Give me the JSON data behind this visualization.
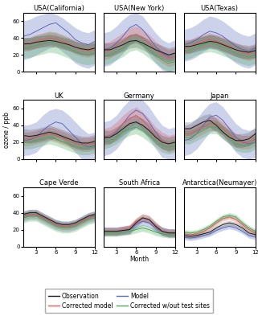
{
  "sites": [
    "USA(California)",
    "USA(New York)",
    "USA(Texas)",
    "UK",
    "Germany",
    "Japan",
    "Cape Verde",
    "South Africa",
    "Antarctica(Neumayer)"
  ],
  "months": [
    1,
    2,
    3,
    4,
    5,
    6,
    7,
    8,
    9,
    10,
    11,
    12
  ],
  "ylim": [
    0,
    70
  ],
  "yticks": [
    0,
    20,
    40,
    60
  ],
  "xticks": [
    3,
    6,
    9,
    12
  ],
  "ylabel": "ozone / ppb",
  "xlabel": "Month",
  "colors": {
    "obs": "#1a1a1a",
    "model": "#5b6abf",
    "corrected": "#e05c5c",
    "corrected_wo": "#4aaa5c"
  },
  "data": {
    "USA(California)": {
      "obs": [
        33,
        33,
        35,
        36,
        37,
        36,
        34,
        32,
        29,
        27,
        26,
        28
      ],
      "obs_lo": [
        26,
        26,
        28,
        29,
        30,
        29,
        27,
        25,
        22,
        20,
        19,
        21
      ],
      "obs_hi": [
        40,
        40,
        42,
        43,
        44,
        43,
        41,
        39,
        36,
        34,
        33,
        35
      ],
      "model": [
        42,
        44,
        48,
        52,
        56,
        58,
        52,
        46,
        38,
        34,
        32,
        36
      ],
      "model_lo": [
        14,
        16,
        20,
        24,
        28,
        30,
        24,
        18,
        10,
        6,
        4,
        8
      ],
      "model_hi": [
        60,
        62,
        66,
        68,
        70,
        68,
        64,
        58,
        52,
        48,
        46,
        50
      ],
      "corr": [
        32,
        33,
        36,
        38,
        40,
        39,
        36,
        33,
        29,
        26,
        25,
        27
      ],
      "corr_lo": [
        24,
        25,
        28,
        30,
        32,
        31,
        28,
        25,
        21,
        18,
        17,
        19
      ],
      "corr_hi": [
        40,
        41,
        44,
        46,
        48,
        47,
        44,
        41,
        37,
        34,
        33,
        35
      ],
      "corrwo": [
        28,
        29,
        31,
        33,
        35,
        34,
        31,
        28,
        24,
        21,
        20,
        22
      ],
      "corrwo_lo": [
        16,
        17,
        19,
        21,
        23,
        22,
        19,
        16,
        12,
        9,
        8,
        10
      ],
      "corrwo_hi": [
        40,
        41,
        43,
        45,
        47,
        46,
        43,
        40,
        36,
        33,
        32,
        34
      ]
    },
    "USA(New York)": {
      "obs": [
        26,
        26,
        29,
        32,
        36,
        37,
        34,
        30,
        26,
        23,
        20,
        22
      ],
      "obs_lo": [
        18,
        18,
        21,
        24,
        28,
        29,
        26,
        22,
        18,
        15,
        12,
        14
      ],
      "obs_hi": [
        34,
        34,
        37,
        40,
        44,
        45,
        42,
        38,
        34,
        31,
        28,
        30
      ],
      "model": [
        26,
        28,
        34,
        42,
        52,
        56,
        50,
        40,
        30,
        22,
        18,
        22
      ],
      "model_lo": [
        6,
        8,
        14,
        22,
        32,
        36,
        30,
        20,
        10,
        2,
        0,
        2
      ],
      "model_hi": [
        46,
        48,
        54,
        62,
        68,
        70,
        66,
        56,
        46,
        38,
        34,
        38
      ],
      "corr": [
        24,
        26,
        31,
        36,
        42,
        44,
        40,
        34,
        26,
        20,
        16,
        18
      ],
      "corr_lo": [
        14,
        16,
        21,
        26,
        32,
        34,
        30,
        24,
        16,
        10,
        6,
        8
      ],
      "corr_hi": [
        34,
        36,
        41,
        46,
        52,
        54,
        50,
        44,
        36,
        30,
        26,
        28
      ],
      "corrwo": [
        18,
        20,
        24,
        28,
        34,
        36,
        32,
        26,
        20,
        14,
        10,
        12
      ],
      "corrwo_lo": [
        8,
        10,
        14,
        18,
        24,
        26,
        22,
        16,
        10,
        4,
        0,
        2
      ],
      "corrwo_hi": [
        28,
        30,
        34,
        38,
        44,
        46,
        42,
        36,
        30,
        24,
        20,
        22
      ]
    },
    "USA(Texas)": {
      "obs": [
        30,
        30,
        32,
        34,
        36,
        35,
        32,
        29,
        26,
        24,
        23,
        25
      ],
      "obs_lo": [
        22,
        22,
        24,
        26,
        28,
        27,
        24,
        21,
        18,
        16,
        15,
        17
      ],
      "obs_hi": [
        38,
        38,
        40,
        42,
        44,
        43,
        40,
        37,
        34,
        32,
        31,
        33
      ],
      "model": [
        32,
        34,
        38,
        44,
        48,
        46,
        42,
        36,
        30,
        26,
        24,
        28
      ],
      "model_lo": [
        12,
        14,
        18,
        24,
        28,
        26,
        22,
        16,
        10,
        6,
        4,
        8
      ],
      "model_hi": [
        50,
        52,
        56,
        62,
        66,
        64,
        60,
        54,
        48,
        44,
        42,
        46
      ],
      "corr": [
        28,
        30,
        34,
        36,
        38,
        36,
        33,
        30,
        26,
        23,
        21,
        24
      ],
      "corr_lo": [
        20,
        22,
        26,
        28,
        30,
        28,
        25,
        22,
        18,
        15,
        13,
        16
      ],
      "corr_hi": [
        36,
        38,
        42,
        44,
        46,
        44,
        41,
        38,
        34,
        31,
        29,
        32
      ],
      "corrwo": [
        24,
        26,
        30,
        32,
        34,
        32,
        29,
        26,
        22,
        19,
        17,
        20
      ],
      "corrwo_lo": [
        14,
        16,
        20,
        22,
        24,
        22,
        19,
        16,
        12,
        9,
        7,
        10
      ],
      "corrwo_hi": [
        34,
        36,
        40,
        42,
        44,
        42,
        39,
        36,
        32,
        29,
        27,
        30
      ]
    },
    "UK": {
      "obs": [
        28,
        27,
        28,
        30,
        32,
        30,
        27,
        24,
        21,
        19,
        19,
        21
      ],
      "obs_lo": [
        20,
        19,
        20,
        22,
        24,
        22,
        19,
        16,
        13,
        11,
        11,
        13
      ],
      "obs_hi": [
        36,
        35,
        36,
        38,
        40,
        38,
        35,
        32,
        29,
        27,
        27,
        29
      ],
      "model": [
        22,
        23,
        26,
        34,
        40,
        44,
        42,
        34,
        26,
        18,
        14,
        16
      ],
      "model_lo": [
        4,
        5,
        8,
        16,
        22,
        26,
        24,
        16,
        8,
        0,
        0,
        0
      ],
      "model_hi": [
        40,
        41,
        44,
        52,
        58,
        60,
        58,
        52,
        44,
        36,
        30,
        32
      ],
      "corr": [
        24,
        24,
        26,
        28,
        30,
        28,
        25,
        22,
        19,
        17,
        17,
        19
      ],
      "corr_lo": [
        16,
        16,
        18,
        20,
        22,
        20,
        17,
        14,
        11,
        9,
        9,
        11
      ],
      "corr_hi": [
        32,
        32,
        34,
        36,
        38,
        36,
        33,
        30,
        27,
        25,
        25,
        27
      ],
      "corrwo": [
        20,
        20,
        22,
        24,
        26,
        24,
        21,
        18,
        15,
        13,
        13,
        15
      ],
      "corrwo_lo": [
        12,
        12,
        14,
        16,
        18,
        16,
        13,
        10,
        7,
        5,
        5,
        7
      ],
      "corrwo_hi": [
        28,
        28,
        30,
        32,
        34,
        32,
        29,
        26,
        23,
        21,
        21,
        23
      ]
    },
    "Germany": {
      "obs": [
        26,
        26,
        30,
        36,
        42,
        44,
        40,
        34,
        26,
        20,
        18,
        20
      ],
      "obs_lo": [
        18,
        18,
        22,
        28,
        34,
        36,
        32,
        26,
        18,
        12,
        10,
        12
      ],
      "obs_hi": [
        34,
        34,
        38,
        44,
        50,
        52,
        48,
        42,
        34,
        28,
        26,
        28
      ],
      "model": [
        24,
        26,
        32,
        42,
        52,
        58,
        54,
        44,
        32,
        22,
        18,
        20
      ],
      "model_lo": [
        4,
        6,
        12,
        22,
        32,
        38,
        34,
        24,
        12,
        2,
        0,
        0
      ],
      "model_hi": [
        44,
        46,
        52,
        62,
        70,
        70,
        70,
        62,
        50,
        40,
        36,
        38
      ],
      "corr": [
        26,
        28,
        34,
        42,
        48,
        52,
        46,
        38,
        28,
        22,
        18,
        20
      ],
      "corr_lo": [
        16,
        18,
        24,
        32,
        38,
        42,
        36,
        28,
        18,
        12,
        8,
        10
      ],
      "corr_hi": [
        36,
        38,
        44,
        52,
        58,
        62,
        56,
        48,
        38,
        32,
        28,
        30
      ],
      "corrwo": [
        20,
        22,
        26,
        32,
        36,
        38,
        34,
        28,
        22,
        16,
        14,
        16
      ],
      "corrwo_lo": [
        12,
        14,
        18,
        24,
        28,
        30,
        26,
        20,
        14,
        8,
        6,
        8
      ],
      "corrwo_hi": [
        28,
        30,
        34,
        40,
        44,
        46,
        42,
        36,
        30,
        24,
        22,
        24
      ]
    },
    "Japan": {
      "obs": [
        36,
        36,
        40,
        44,
        46,
        40,
        32,
        26,
        22,
        22,
        24,
        30
      ],
      "obs_lo": [
        28,
        28,
        32,
        36,
        38,
        32,
        24,
        18,
        14,
        14,
        16,
        22
      ],
      "obs_hi": [
        44,
        44,
        48,
        52,
        54,
        48,
        40,
        34,
        30,
        30,
        32,
        38
      ],
      "model": [
        22,
        24,
        30,
        40,
        50,
        52,
        46,
        36,
        26,
        20,
        18,
        20
      ],
      "model_lo": [
        4,
        6,
        12,
        22,
        32,
        34,
        28,
        18,
        8,
        2,
        0,
        2
      ],
      "model_hi": [
        40,
        42,
        48,
        58,
        66,
        68,
        62,
        52,
        42,
        36,
        34,
        36
      ],
      "corr": [
        30,
        30,
        34,
        38,
        42,
        42,
        36,
        30,
        22,
        20,
        20,
        24
      ],
      "corr_lo": [
        22,
        22,
        26,
        30,
        34,
        34,
        28,
        22,
        14,
        12,
        12,
        16
      ],
      "corr_hi": [
        38,
        38,
        42,
        46,
        50,
        50,
        44,
        38,
        30,
        28,
        28,
        32
      ],
      "corrwo": [
        26,
        26,
        30,
        34,
        38,
        38,
        32,
        26,
        18,
        16,
        16,
        20
      ],
      "corrwo_lo": [
        18,
        18,
        22,
        26,
        30,
        30,
        24,
        18,
        10,
        8,
        8,
        12
      ],
      "corrwo_hi": [
        34,
        34,
        38,
        42,
        46,
        46,
        40,
        34,
        26,
        24,
        24,
        28
      ]
    },
    "Cape Verde": {
      "obs": [
        38,
        40,
        40,
        36,
        32,
        28,
        26,
        26,
        28,
        32,
        36,
        38
      ],
      "obs_lo": [
        34,
        36,
        36,
        32,
        28,
        24,
        22,
        22,
        24,
        28,
        32,
        34
      ],
      "obs_hi": [
        42,
        44,
        44,
        40,
        36,
        32,
        30,
        30,
        32,
        36,
        40,
        42
      ],
      "model": [
        36,
        38,
        38,
        34,
        30,
        26,
        24,
        24,
        26,
        30,
        34,
        36
      ],
      "model_lo": [
        30,
        32,
        32,
        28,
        24,
        20,
        18,
        18,
        20,
        24,
        28,
        30
      ],
      "model_hi": [
        42,
        44,
        44,
        40,
        36,
        32,
        30,
        30,
        32,
        36,
        40,
        42
      ],
      "corr": [
        36,
        38,
        38,
        34,
        30,
        26,
        24,
        24,
        26,
        30,
        34,
        36
      ],
      "corr_lo": [
        32,
        34,
        34,
        30,
        26,
        22,
        20,
        20,
        22,
        26,
        30,
        32
      ],
      "corr_hi": [
        40,
        42,
        42,
        38,
        34,
        30,
        28,
        28,
        30,
        34,
        38,
        40
      ],
      "corrwo": [
        34,
        36,
        36,
        32,
        28,
        24,
        22,
        22,
        24,
        28,
        32,
        34
      ],
      "corrwo_lo": [
        28,
        30,
        30,
        26,
        22,
        18,
        16,
        16,
        18,
        22,
        26,
        28
      ],
      "corrwo_hi": [
        40,
        42,
        42,
        38,
        34,
        30,
        28,
        28,
        30,
        34,
        38,
        40
      ]
    },
    "South Africa": {
      "obs": [
        18,
        18,
        18,
        19,
        20,
        28,
        34,
        32,
        24,
        18,
        16,
        16
      ],
      "obs_lo": [
        13,
        13,
        13,
        14,
        15,
        23,
        29,
        27,
        19,
        13,
        11,
        11
      ],
      "obs_hi": [
        23,
        23,
        23,
        24,
        25,
        33,
        39,
        37,
        29,
        23,
        21,
        21
      ],
      "model": [
        18,
        18,
        18,
        19,
        20,
        26,
        30,
        28,
        22,
        18,
        16,
        16
      ],
      "model_lo": [
        13,
        13,
        13,
        14,
        15,
        21,
        25,
        23,
        17,
        13,
        11,
        11
      ],
      "model_hi": [
        23,
        23,
        23,
        24,
        25,
        31,
        35,
        33,
        27,
        23,
        21,
        21
      ],
      "corr": [
        18,
        18,
        18,
        20,
        22,
        30,
        34,
        32,
        25,
        18,
        16,
        16
      ],
      "corr_lo": [
        14,
        14,
        14,
        16,
        18,
        26,
        30,
        28,
        21,
        14,
        12,
        12
      ],
      "corr_hi": [
        22,
        22,
        22,
        24,
        26,
        34,
        38,
        36,
        29,
        22,
        20,
        20
      ],
      "corrwo": [
        16,
        16,
        16,
        17,
        18,
        20,
        22,
        20,
        17,
        15,
        14,
        14
      ],
      "corrwo_lo": [
        12,
        12,
        12,
        13,
        14,
        16,
        18,
        16,
        13,
        11,
        10,
        10
      ],
      "corrwo_hi": [
        20,
        20,
        20,
        21,
        22,
        24,
        26,
        24,
        21,
        19,
        18,
        18
      ]
    },
    "Antarctica(Neumayer)": {
      "obs": [
        13,
        12,
        13,
        15,
        17,
        22,
        26,
        28,
        26,
        22,
        16,
        14
      ],
      "obs_lo": [
        10,
        9,
        10,
        12,
        14,
        19,
        23,
        25,
        23,
        19,
        13,
        11
      ],
      "obs_hi": [
        16,
        15,
        16,
        18,
        20,
        25,
        29,
        31,
        29,
        25,
        19,
        17
      ],
      "model": [
        11,
        10,
        11,
        13,
        15,
        19,
        22,
        24,
        22,
        18,
        13,
        11
      ],
      "model_lo": [
        8,
        7,
        8,
        10,
        12,
        16,
        19,
        21,
        19,
        15,
        10,
        8
      ],
      "model_hi": [
        14,
        13,
        14,
        16,
        18,
        22,
        25,
        27,
        25,
        21,
        16,
        14
      ],
      "corr": [
        15,
        14,
        15,
        18,
        22,
        28,
        33,
        35,
        32,
        26,
        20,
        16
      ],
      "corr_lo": [
        12,
        11,
        12,
        15,
        19,
        25,
        30,
        32,
        29,
        23,
        17,
        13
      ],
      "corr_hi": [
        18,
        17,
        18,
        21,
        25,
        31,
        36,
        38,
        35,
        29,
        23,
        19
      ],
      "corrwo": [
        17,
        16,
        17,
        20,
        24,
        30,
        35,
        37,
        35,
        28,
        22,
        18
      ],
      "corrwo_lo": [
        14,
        13,
        14,
        17,
        21,
        27,
        32,
        34,
        32,
        25,
        19,
        15
      ],
      "corrwo_hi": [
        20,
        19,
        20,
        23,
        27,
        33,
        38,
        40,
        38,
        31,
        25,
        21
      ]
    }
  },
  "title_fontsize": 6,
  "tick_fontsize": 5,
  "label_fontsize": 5.5,
  "legend_fontsize": 5.5
}
